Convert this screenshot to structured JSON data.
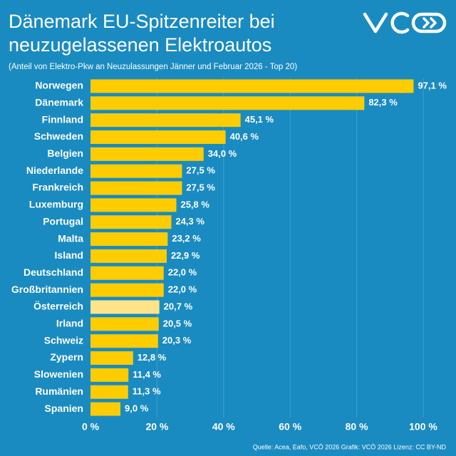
{
  "chart_data": {
    "type": "bar",
    "orientation": "horizontal",
    "title": [
      "Dänemark EU-Spitzenreiter bei",
      "neuzugelassenen Elektroautos"
    ],
    "subtitle": "(Anteil von Elektro-Pkw an Neuzulassungen Jänner und Februar 2026 - Top 20)",
    "categories": [
      "Norwegen",
      "Dänemark",
      "Finnland",
      "Schweden",
      "Belgien",
      "Niederlande",
      "Frankreich",
      "Luxemburg",
      "Portugal",
      "Malta",
      "Island",
      "Deutschland",
      "Großbritannien",
      "Österreich",
      "Irland",
      "Schweiz",
      "Zypern",
      "Slowenien",
      "Rumänien",
      "Spanien"
    ],
    "values": [
      97.1,
      82.3,
      45.1,
      40.6,
      34.0,
      27.5,
      27.5,
      25.8,
      24.3,
      23.2,
      22.9,
      22.0,
      22.0,
      20.7,
      20.5,
      20.3,
      12.8,
      11.4,
      11.3,
      9.0
    ],
    "value_labels": [
      "97,1 %",
      "82,3 %",
      "45,1 %",
      "40,6 %",
      "34,0 %",
      "27,5 %",
      "27,5 %",
      "25,8 %",
      "24,3 %",
      "23,2 %",
      "22,9 %",
      "22,0 %",
      "22,0 %",
      "20,7 %",
      "20,5 %",
      "20,3 %",
      "12,8 %",
      "11,4 %",
      "11,3 %",
      "9,0 %"
    ],
    "colors": [
      "#ffcc00",
      "#ffcc00",
      "#ffcc00",
      "#ffcc00",
      "#ffcc00",
      "#ffcc00",
      "#ffcc00",
      "#ffcc00",
      "#ffcc00",
      "#ffcc00",
      "#ffcc00",
      "#ffcc00",
      "#ffcc00",
      "#ffe38a",
      "#ffcc00",
      "#ffcc00",
      "#ffcc00",
      "#ffcc00",
      "#ffcc00",
      "#ffcc00"
    ],
    "xlim": [
      0,
      100
    ],
    "xticks": [
      {
        "value": 0,
        "label": "0 %"
      },
      {
        "value": 20,
        "label": "20 %"
      },
      {
        "value": 40,
        "label": "40 %"
      },
      {
        "value": 60,
        "label": "60 %"
      },
      {
        "value": 80,
        "label": "80 %"
      },
      {
        "value": 100,
        "label": "100 %"
      }
    ],
    "grid": true,
    "source": "Quelle: Acea, Eafo, VCÖ 2026 Grafik: VCÖ 2026 Lizenz: CC BY-ND"
  }
}
